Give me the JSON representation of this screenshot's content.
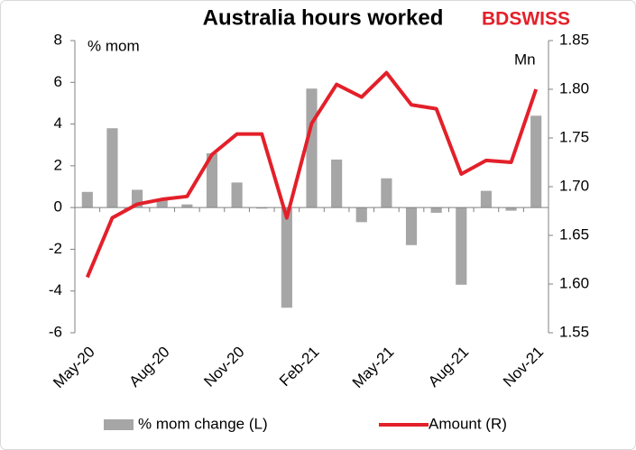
{
  "chart_data": {
    "type": "bar_line",
    "title": "Australia hours worked",
    "logo": "BDSWISS",
    "y_axis_label": "% mom",
    "y2_axis_label": "Mn",
    "categories": [
      "May-20",
      null,
      null,
      "Aug-20",
      null,
      null,
      "Nov-20",
      null,
      null,
      "Feb-21",
      null,
      null,
      "May-21",
      null,
      null,
      "Aug-21",
      null,
      null,
      "Nov-21"
    ],
    "series": [
      {
        "name": "% mom change (L)",
        "color": "#a6a6a6",
        "kind": "bar",
        "axis": "y",
        "values": [
          0.75,
          3.8,
          0.85,
          0.35,
          0.15,
          2.6,
          1.2,
          -0.05,
          -4.8,
          5.7,
          2.3,
          -0.7,
          1.4,
          -1.8,
          -0.25,
          -3.7,
          0.8,
          -0.15,
          4.4
        ]
      },
      {
        "name": "Amount (R)",
        "color": "#e3202a",
        "kind": "line",
        "axis": "y2",
        "values": [
          1.607,
          1.668,
          1.682,
          1.687,
          1.69,
          1.733,
          1.754,
          1.754,
          1.668,
          1.765,
          1.805,
          1.792,
          1.817,
          1.784,
          1.78,
          1.713,
          1.727,
          1.725,
          1.8
        ]
      }
    ],
    "ylim": [
      -6,
      8
    ],
    "yticks": [
      -6,
      -4,
      -2,
      0,
      2,
      4,
      6,
      8
    ],
    "y2lim": [
      1.55,
      1.85
    ],
    "y2ticks": [
      {
        "value": 1.55,
        "label": "1.55"
      },
      {
        "value": 1.6,
        "label": "1.60"
      },
      {
        "value": 1.65,
        "label": "1.65"
      },
      {
        "value": 1.7,
        "label": "1.70"
      },
      {
        "value": 1.75,
        "label": "1.75"
      },
      {
        "value": 1.8,
        "label": "1.80"
      },
      {
        "value": 1.85,
        "label": "1.85"
      }
    ],
    "legend": "bottom"
  }
}
